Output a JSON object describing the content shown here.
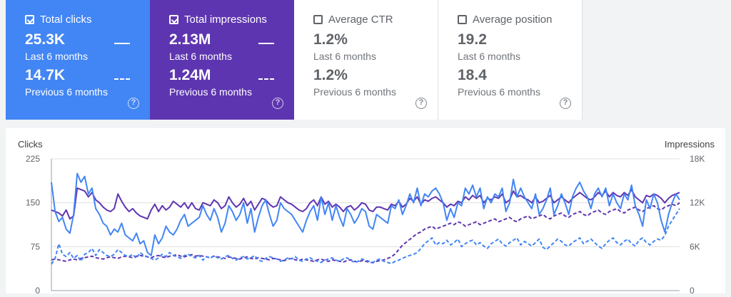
{
  "cards": [
    {
      "title": "Total clicks",
      "checked": true,
      "current_value": "25.3K",
      "current_period": "Last 6 months",
      "previous_value": "14.7K",
      "previous_period": "Previous 6 months",
      "color": "#4285f4",
      "help_icon": "help-icon"
    },
    {
      "title": "Total impressions",
      "checked": true,
      "current_value": "2.13M",
      "current_period": "Last 6 months",
      "previous_value": "1.24M",
      "previous_period": "Previous 6 months",
      "color": "#5e35b1",
      "help_icon": "help-icon"
    },
    {
      "title": "Average CTR",
      "checked": false,
      "current_value": "1.2%",
      "current_period": "Last 6 months",
      "previous_value": "1.2%",
      "previous_period": "Previous 6 months",
      "color": "#ffffff",
      "help_icon": "help-icon"
    },
    {
      "title": "Average position",
      "checked": false,
      "current_value": "19.2",
      "current_period": "Last 6 months",
      "previous_value": "18.4",
      "previous_period": "Previous 6 months",
      "color": "#ffffff",
      "help_icon": "help-icon"
    }
  ],
  "chart_data": {
    "type": "line",
    "left_axis_label": "Clicks",
    "right_axis_label": "Impressions",
    "left_ticks": [
      "225",
      "150",
      "75",
      "0"
    ],
    "right_ticks": [
      "18K",
      "12K",
      "6K",
      "0"
    ],
    "ylim_left": [
      0,
      225
    ],
    "ylim_right": [
      0,
      18000
    ],
    "grid": true,
    "series": [
      {
        "style": "solid",
        "axis": "left",
        "color": "#4285f4",
        "values": [
          185,
          135,
          118,
          125,
          105,
          98,
          130,
          200,
          185,
          195,
          165,
          175,
          140,
          130,
          115,
          110,
          95,
          105,
          100,
          115,
          95,
          90,
          85,
          98,
          80,
          85,
          65,
          60,
          95,
          80,
          90,
          110,
          100,
          95,
          105,
          120,
          130,
          110,
          115,
          120,
          125,
          145,
          130,
          120,
          140,
          125,
          100,
          115,
          145,
          135,
          120,
          130,
          150,
          115,
          140,
          100,
          125,
          145,
          155,
          130,
          110,
          120,
          150,
          140,
          135,
          130,
          120,
          110,
          100,
          120,
          135,
          145,
          120,
          160,
          130,
          150,
          120,
          145,
          125,
          110,
          140,
          130,
          115,
          125,
          140,
          135,
          110,
          105,
          130,
          125,
          120,
          115,
          145,
          140,
          155,
          130,
          145,
          165,
          150,
          175,
          145,
          165,
          160,
          170,
          175,
          165,
          150,
          120,
          140,
          125,
          150,
          145,
          175,
          165,
          180,
          160,
          175,
          140,
          160,
          150,
          165,
          160,
          175,
          135,
          150,
          190,
          160,
          175,
          160,
          150,
          140,
          165,
          130,
          140,
          155,
          175,
          130,
          145,
          165,
          150,
          130,
          160,
          175,
          185,
          170,
          160,
          140,
          165,
          175,
          160,
          175,
          145,
          165,
          150,
          140,
          165,
          155,
          180,
          145,
          130,
          110,
          155,
          140,
          165,
          150,
          120,
          100,
          130,
          150,
          165,
          155
        ]
      },
      {
        "style": "solid",
        "axis": "right",
        "color": "#5e35b1",
        "values": [
          11000,
          10800,
          10600,
          10200,
          11000,
          9800,
          10200,
          14000,
          13800,
          13600,
          12800,
          13400,
          12400,
          12000,
          11400,
          11000,
          10800,
          11200,
          13200,
          12200,
          11400,
          10800,
          11200,
          10600,
          10200,
          10000,
          9800,
          11000,
          11800,
          10800,
          11600,
          11000,
          11400,
          12200,
          11800,
          11400,
          12000,
          11200,
          12000,
          11200,
          11000,
          12000,
          11800,
          11600,
          12400,
          12000,
          11200,
          11600,
          12800,
          12000,
          11400,
          11800,
          12600,
          11600,
          12200,
          11000,
          11800,
          12600,
          12400,
          11800,
          11400,
          11600,
          12800,
          12400,
          12000,
          11800,
          11400,
          11000,
          10800,
          11200,
          12000,
          12400,
          11600,
          12800,
          11800,
          12200,
          11400,
          11800,
          11400,
          10800,
          11400,
          11600,
          11000,
          11400,
          12000,
          11800,
          11000,
          10800,
          11400,
          11400,
          11200,
          11000,
          11800,
          11600,
          12200,
          11400,
          11800,
          12600,
          12200,
          12800,
          11800,
          12400,
          12200,
          12600,
          12800,
          12400,
          12000,
          11400,
          11800,
          11600,
          12200,
          12000,
          12800,
          12400,
          13000,
          12600,
          13000,
          12000,
          12600,
          12400,
          12800,
          12600,
          13200,
          12000,
          12400,
          13600,
          12800,
          13000,
          12600,
          12400,
          12000,
          12800,
          12000,
          12200,
          12600,
          13000,
          12000,
          12400,
          12800,
          12400,
          12000,
          12600,
          13000,
          13400,
          13000,
          12600,
          12400,
          12800,
          13400,
          13000,
          13600,
          12800,
          13400,
          13000,
          12800,
          13400,
          13000,
          13800,
          12800,
          12400,
          12000,
          13000,
          12800,
          13200,
          13000,
          12600,
          12000,
          12600,
          13000,
          13200,
          13400
        ]
      },
      {
        "style": "dashed",
        "axis": "left",
        "color": "#4285f4",
        "values": [
          45,
          55,
          80,
          62,
          58,
          65,
          55,
          60,
          50,
          62,
          65,
          72,
          60,
          70,
          65,
          60,
          58,
          62,
          70,
          65,
          60,
          58,
          62,
          55,
          65,
          60,
          58,
          55,
          52,
          56,
          62,
          58,
          65,
          60,
          58,
          55,
          60,
          62,
          58,
          56,
          60,
          52,
          58,
          55,
          60,
          56,
          54,
          58,
          60,
          55,
          52,
          56,
          58,
          54,
          56,
          60,
          52,
          50,
          55,
          58,
          56,
          54,
          50,
          52,
          56,
          54,
          58,
          52,
          50,
          54,
          56,
          52,
          50,
          48,
          52,
          54,
          56,
          52,
          50,
          54,
          56,
          52,
          48,
          50,
          54,
          52,
          50,
          48,
          52,
          54,
          50,
          48,
          46,
          50,
          52,
          55,
          58,
          60,
          62,
          65,
          72,
          80,
          85,
          90,
          78,
          82,
          80,
          86,
          78,
          82,
          88,
          75,
          80,
          84,
          86,
          78,
          82,
          76,
          72,
          80,
          84,
          88,
          80,
          76,
          82,
          86,
          90,
          78,
          84,
          80,
          76,
          82,
          88,
          74,
          70,
          76,
          82,
          88,
          84,
          78,
          76,
          82,
          86,
          90,
          80,
          84,
          88,
          82,
          76,
          72,
          80,
          86,
          90,
          82,
          78,
          84,
          88,
          80,
          76,
          86,
          90,
          82,
          78,
          84,
          88,
          86,
          94,
          110,
          120,
          130,
          140
        ]
      },
      {
        "style": "dashed",
        "axis": "right",
        "color": "#5e35b1",
        "values": [
          4200,
          4300,
          4200,
          4100,
          4000,
          4200,
          4300,
          4200,
          4400,
          4500,
          4600,
          4700,
          4500,
          4400,
          4300,
          4500,
          4600,
          4500,
          4400,
          4600,
          4700,
          4600,
          4500,
          4700,
          4800,
          4700,
          4600,
          4500,
          4700,
          4800,
          4600,
          4500,
          4700,
          4800,
          4900,
          4700,
          4600,
          4800,
          4900,
          4700,
          4800,
          4700,
          4600,
          4500,
          4700,
          4600,
          4500,
          4400,
          4600,
          4500,
          4400,
          4300,
          4500,
          4600,
          4400,
          4300,
          4500,
          4400,
          4300,
          4200,
          4400,
          4300,
          4200,
          4100,
          4300,
          4400,
          4200,
          4100,
          4300,
          4200,
          4100,
          4000,
          4200,
          4300,
          4100,
          4000,
          4200,
          4100,
          4000,
          3900,
          4100,
          4200,
          4000,
          3900,
          4100,
          4000,
          3900,
          3800,
          4000,
          4100,
          4200,
          4400,
          4600,
          5000,
          5600,
          6200,
          6600,
          7000,
          7400,
          7800,
          8000,
          8400,
          8600,
          8800,
          8400,
          8600,
          8800,
          9000,
          9200,
          9000,
          9400,
          9200,
          8800,
          9000,
          9200,
          9400,
          9000,
          9200,
          9400,
          9600,
          9800,
          9400,
          9600,
          9800,
          10000,
          9600,
          9400,
          9800,
          10000,
          10200,
          9800,
          10000,
          10200,
          10400,
          10000,
          9800,
          10200,
          10400,
          10600,
          10200,
          10000,
          10400,
          10600,
          10800,
          10400,
          10200,
          10600,
          10800,
          11000,
          10600,
          10400,
          10800,
          11000,
          11200,
          10800,
          10600,
          11000,
          11200,
          11400,
          11000,
          10800,
          11200,
          11400,
          11600,
          11200,
          11000,
          11400,
          11600,
          11800,
          11600,
          12000
        ]
      }
    ]
  }
}
